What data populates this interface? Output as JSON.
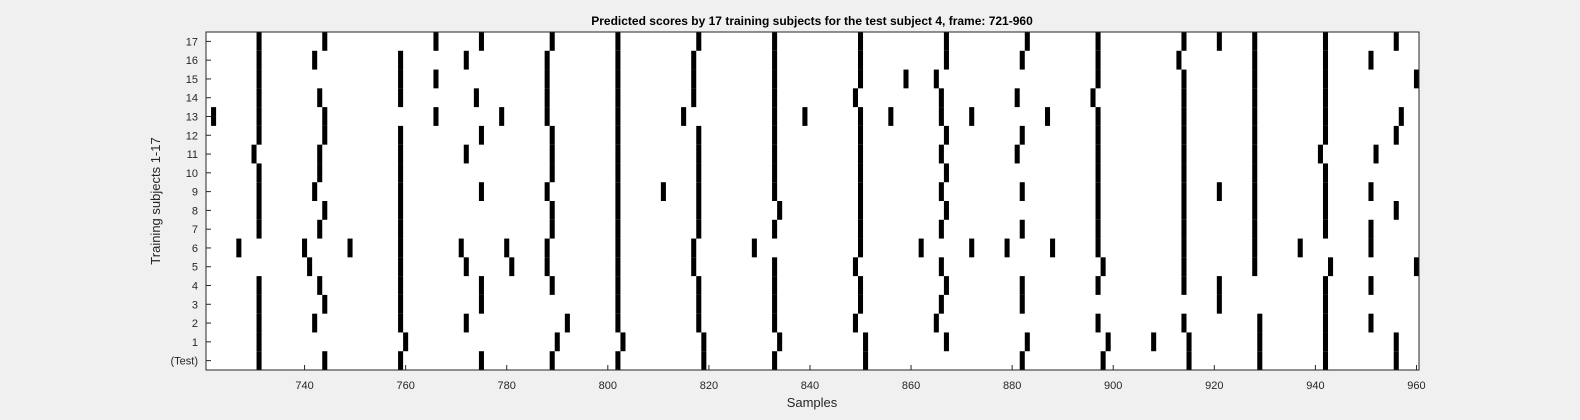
{
  "chart_data": {
    "type": "heatmap",
    "title": "Predicted scores by 17 training subjects for the test subject 4, frame: 721-960",
    "xlabel": "Samples",
    "ylabel": "Training subjects 1-17",
    "xlim": [
      721,
      960
    ],
    "xticks": [
      740,
      760,
      780,
      800,
      820,
      840,
      860,
      880,
      900,
      920,
      940,
      960
    ],
    "row_labels": [
      "(Test)",
      "1",
      "2",
      "3",
      "4",
      "5",
      "6",
      "7",
      "8",
      "9",
      "10",
      "11",
      "12",
      "13",
      "14",
      "15",
      "16",
      "17"
    ],
    "mark_color": "#000000",
    "background_color": "#ffffff",
    "rows": [
      {
        "label": "(Test)",
        "marks": [
          731,
          744,
          759,
          775,
          789,
          802,
          819,
          833,
          851,
          882,
          898,
          915,
          929,
          942,
          956
        ]
      },
      {
        "label": "1",
        "marks": [
          731,
          760,
          790,
          803,
          819,
          834,
          851,
          867,
          883,
          899,
          908,
          915,
          929,
          942,
          956
        ]
      },
      {
        "label": "2",
        "marks": [
          731,
          742,
          759,
          772,
          792,
          802,
          818,
          833,
          849,
          865,
          897,
          914,
          929,
          942,
          951
        ]
      },
      {
        "label": "3",
        "marks": [
          731,
          744,
          759,
          775,
          802,
          818,
          833,
          850,
          866,
          882,
          921,
          942
        ]
      },
      {
        "label": "4",
        "marks": [
          731,
          743,
          759,
          775,
          789,
          802,
          818,
          833,
          850,
          867,
          882,
          897,
          914,
          921,
          942,
          951
        ]
      },
      {
        "label": "5",
        "marks": [
          741,
          759,
          772,
          781,
          788,
          802,
          817,
          833,
          849,
          866,
          898,
          914,
          928,
          943,
          960
        ]
      },
      {
        "label": "6",
        "marks": [
          727,
          740,
          749,
          759,
          771,
          780,
          788,
          802,
          817,
          829,
          850,
          862,
          872,
          879,
          888,
          897,
          914,
          928,
          937,
          951
        ]
      },
      {
        "label": "7",
        "marks": [
          731,
          743,
          759,
          789,
          802,
          818,
          833,
          850,
          866,
          882,
          897,
          914,
          928,
          942,
          951
        ]
      },
      {
        "label": "8",
        "marks": [
          731,
          744,
          759,
          789,
          802,
          818,
          834,
          850,
          867,
          897,
          914,
          928,
          942,
          956
        ]
      },
      {
        "label": "9",
        "marks": [
          731,
          742,
          759,
          775,
          788,
          802,
          811,
          818,
          833,
          850,
          866,
          882,
          897,
          914,
          921,
          928,
          942,
          951
        ]
      },
      {
        "label": "10",
        "marks": [
          731,
          743,
          759,
          789,
          802,
          818,
          833,
          850,
          867,
          897,
          914,
          928,
          942
        ]
      },
      {
        "label": "11",
        "marks": [
          730,
          743,
          759,
          772,
          789,
          802,
          818,
          833,
          850,
          866,
          881,
          897,
          914,
          928,
          941,
          952
        ]
      },
      {
        "label": "12",
        "marks": [
          731,
          744,
          759,
          775,
          789,
          802,
          818,
          833,
          850,
          867,
          882,
          897,
          914,
          928,
          942,
          956
        ]
      },
      {
        "label": "13",
        "marks": [
          722,
          731,
          744,
          766,
          779,
          788,
          802,
          815,
          833,
          839,
          850,
          856,
          866,
          872,
          887,
          897,
          914,
          928,
          942,
          957
        ]
      },
      {
        "label": "14",
        "marks": [
          731,
          743,
          759,
          774,
          788,
          802,
          817,
          833,
          849,
          866,
          881,
          896,
          914,
          928,
          942
        ]
      },
      {
        "label": "15",
        "marks": [
          731,
          759,
          766,
          788,
          802,
          817,
          833,
          850,
          859,
          865,
          897,
          914,
          928,
          942,
          960
        ]
      },
      {
        "label": "16",
        "marks": [
          731,
          742,
          759,
          772,
          788,
          802,
          817,
          833,
          850,
          867,
          882,
          897,
          913,
          928,
          942,
          951
        ]
      },
      {
        "label": "17",
        "marks": [
          731,
          744,
          766,
          775,
          789,
          802,
          818,
          833,
          850,
          867,
          883,
          897,
          914,
          921,
          928,
          942,
          956
        ]
      }
    ]
  }
}
